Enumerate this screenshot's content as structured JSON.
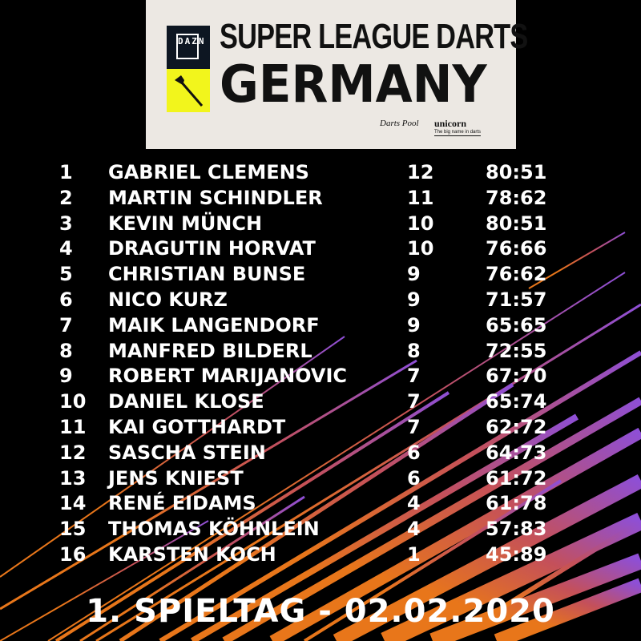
{
  "header": {
    "broadcaster": "DAZN",
    "title_line1": "SUPER LEAGUE DARTS",
    "title_line2": "GERMANY",
    "sponsor1": "Darts Pool",
    "sponsor2": "unicorn",
    "sponsor2_tagline": "The big name in darts"
  },
  "standings": [
    {
      "rank": "1",
      "name": "GABRIEL CLEMENS",
      "points": "12",
      "score": "80:51"
    },
    {
      "rank": "2",
      "name": "MARTIN SCHINDLER",
      "points": "11",
      "score": "78:62"
    },
    {
      "rank": "3",
      "name": "KEVIN MÜNCH",
      "points": "10",
      "score": "80:51"
    },
    {
      "rank": "4",
      "name": "DRAGUTIN HORVAT",
      "points": "10",
      "score": "76:66"
    },
    {
      "rank": "5",
      "name": "CHRISTIAN BUNSE",
      "points": "9",
      "score": "76:62"
    },
    {
      "rank": "6",
      "name": "NICO KURZ",
      "points": "9",
      "score": "71:57"
    },
    {
      "rank": "7",
      "name": "MAIK LANGENDORF",
      "points": "9",
      "score": "65:65"
    },
    {
      "rank": "8",
      "name": "MANFRED BILDERL",
      "points": "8",
      "score": "72:55"
    },
    {
      "rank": "9",
      "name": "ROBERT MARIJANOVIC",
      "points": "7",
      "score": "67:70"
    },
    {
      "rank": "10",
      "name": "DANIEL KLOSE",
      "points": "7",
      "score": "65:74"
    },
    {
      "rank": "11",
      "name": "KAI GOTTHARDT",
      "points": "7",
      "score": "62:72"
    },
    {
      "rank": "12",
      "name": "SASCHA STEIN",
      "points": "6",
      "score": "64:73"
    },
    {
      "rank": "13",
      "name": "JENS KNIEST",
      "points": "6",
      "score": "61:72"
    },
    {
      "rank": "14",
      "name": "RENÉ EIDAMS",
      "points": "4",
      "score": "61:78"
    },
    {
      "rank": "15",
      "name": "THOMAS KÖHNLEIN",
      "points": "4",
      "score": "57:83"
    },
    {
      "rank": "16",
      "name": "KARSTEN KOCH",
      "points": "1",
      "score": "45:89"
    }
  ],
  "footer": {
    "matchday": "1. SPIELTAG - 02.02.2020"
  },
  "colors": {
    "background": "#000000",
    "logo_bg": "#ece8e3",
    "dazn_yellow": "#f2f51c",
    "streak_orange": "#e8761a",
    "streak_purple": "#8e4fd6"
  }
}
